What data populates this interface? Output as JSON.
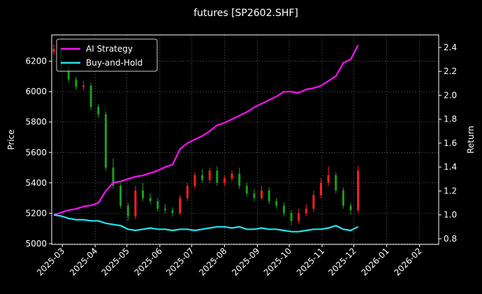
{
  "chart_data": {
    "type": "candlestick",
    "title": "futures [SP2602.SHF]",
    "ylabel": "Price",
    "y2label": "Return",
    "x": [
      "2025-02-21",
      "2025-02-28",
      "2025-03-07",
      "2025-03-14",
      "2025-03-21",
      "2025-03-28",
      "2025-04-04",
      "2025-04-11",
      "2025-04-18",
      "2025-04-25",
      "2025-05-02",
      "2025-05-09",
      "2025-05-16",
      "2025-05-23",
      "2025-05-30",
      "2025-06-06",
      "2025-06-13",
      "2025-06-20",
      "2025-06-27",
      "2025-07-04",
      "2025-07-11",
      "2025-07-18",
      "2025-07-25",
      "2025-08-01",
      "2025-08-08",
      "2025-08-15",
      "2025-08-22",
      "2025-08-29",
      "2025-09-05",
      "2025-09-12",
      "2025-09-19",
      "2025-09-26",
      "2025-10-03",
      "2025-10-10",
      "2025-10-17",
      "2025-10-24",
      "2025-10-31",
      "2025-11-07",
      "2025-11-14",
      "2025-11-21",
      "2025-11-28",
      "2025-12-05"
    ],
    "open": [
      6260,
      6280,
      6150,
      6080,
      6030,
      6040,
      5900,
      5850,
      5500,
      5380,
      5250,
      5180,
      5350,
      5300,
      5280,
      5230,
      5220,
      5200,
      5300,
      5380,
      5450,
      5420,
      5480,
      5400,
      5430,
      5460,
      5380,
      5330,
      5300,
      5350,
      5280,
      5250,
      5200,
      5150,
      5200,
      5230,
      5320,
      5400,
      5450,
      5350,
      5250,
      5220
    ],
    "high": [
      6310,
      6300,
      6170,
      6100,
      6070,
      6060,
      5920,
      5870,
      5560,
      5400,
      5270,
      5380,
      5400,
      5330,
      5300,
      5260,
      5240,
      5320,
      5400,
      5470,
      5490,
      5500,
      5510,
      5450,
      5480,
      5500,
      5400,
      5360,
      5380,
      5370,
      5300,
      5270,
      5220,
      5230,
      5260,
      5350,
      5430,
      5510,
      5470,
      5370,
      5270,
      5510
    ],
    "low": [
      6240,
      6130,
      6060,
      6010,
      6010,
      5880,
      5830,
      5480,
      5360,
      5230,
      5150,
      5160,
      5280,
      5260,
      5210,
      5200,
      5180,
      5190,
      5280,
      5360,
      5400,
      5400,
      5380,
      5380,
      5410,
      5360,
      5310,
      5280,
      5290,
      5260,
      5230,
      5180,
      5120,
      5130,
      5180,
      5210,
      5300,
      5380,
      5330,
      5230,
      5190,
      5200
    ],
    "close": [
      6280,
      6150,
      6080,
      6030,
      6040,
      5900,
      5850,
      5500,
      5380,
      5250,
      5180,
      5350,
      5300,
      5280,
      5230,
      5220,
      5200,
      5300,
      5380,
      5450,
      5420,
      5480,
      5400,
      5430,
      5460,
      5380,
      5330,
      5300,
      5350,
      5280,
      5250,
      5200,
      5150,
      5200,
      5230,
      5320,
      5400,
      5450,
      5350,
      5250,
      5220,
      5480
    ],
    "up_color": "#ff2020",
    "down_color": "#1e9e1e",
    "series": [
      {
        "name": "AI Strategy",
        "color": "#ff10ff",
        "axis": "y2",
        "values": [
          1.0,
          1.02,
          1.04,
          1.05,
          1.07,
          1.08,
          1.1,
          1.2,
          1.27,
          1.28,
          1.3,
          1.32,
          1.33,
          1.35,
          1.37,
          1.4,
          1.42,
          1.55,
          1.6,
          1.63,
          1.66,
          1.7,
          1.75,
          1.77,
          1.8,
          1.83,
          1.86,
          1.9,
          1.93,
          1.96,
          1.99,
          2.03,
          2.03,
          2.02,
          2.05,
          2.06,
          2.08,
          2.12,
          2.16,
          2.27,
          2.3,
          2.42
        ]
      },
      {
        "name": "Buy-and-Hold",
        "color": "#22e5f0",
        "axis": "y2",
        "values": [
          1.0,
          0.99,
          0.97,
          0.96,
          0.96,
          0.95,
          0.95,
          0.93,
          0.92,
          0.91,
          0.88,
          0.87,
          0.88,
          0.89,
          0.88,
          0.88,
          0.87,
          0.88,
          0.88,
          0.87,
          0.88,
          0.89,
          0.9,
          0.9,
          0.89,
          0.9,
          0.88,
          0.88,
          0.89,
          0.88,
          0.88,
          0.87,
          0.86,
          0.86,
          0.87,
          0.88,
          0.88,
          0.89,
          0.91,
          0.88,
          0.87,
          0.9
        ]
      }
    ],
    "xlim": [
      "2025-02-19",
      "2026-02-19"
    ],
    "xticks": [
      "2025-03",
      "2025-04",
      "2025-05",
      "2025-06",
      "2025-07",
      "2025-08",
      "2025-09",
      "2025-10",
      "2025-11",
      "2025-12",
      "2026-01",
      "2026-02"
    ],
    "ylim": [
      4995,
      6373
    ],
    "yticks": [
      5000,
      5200,
      5400,
      5600,
      5800,
      6000,
      6200
    ],
    "y2lim": [
      0.753,
      2.505
    ],
    "y2ticks": [
      0.8,
      {
        "value": 1,
        "label": "1.0"
      },
      1.2,
      1.4,
      1.6,
      1.8,
      {
        "value": 2,
        "label": "2.0"
      },
      2.2,
      2.4
    ],
    "grid": true,
    "legend": "upper left"
  }
}
